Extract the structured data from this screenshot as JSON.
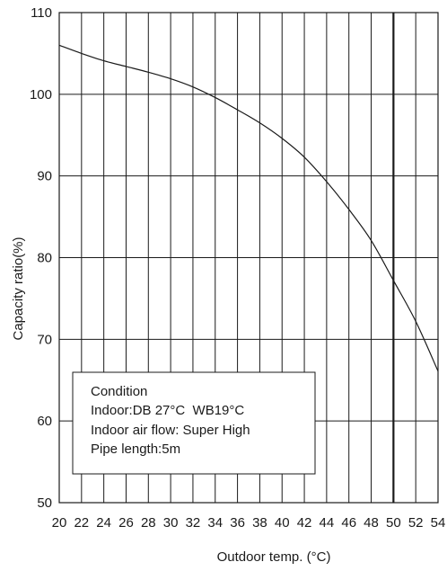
{
  "chart_data": {
    "type": "line",
    "xlabel": "Outdoor temp. (°C)",
    "ylabel": "Capacity ratio(%)",
    "xlim": [
      20,
      54
    ],
    "ylim": [
      50,
      110
    ],
    "x_ticks": [
      20,
      22,
      24,
      26,
      28,
      30,
      32,
      34,
      36,
      38,
      40,
      42,
      44,
      46,
      48,
      50,
      52,
      54
    ],
    "x_tick_labels": [
      "20",
      "22",
      "24",
      "26",
      "28",
      "30",
      "32",
      "34",
      "36",
      "38",
      "40",
      "42",
      "44",
      "46",
      "48",
      "50",
      "52",
      "54"
    ],
    "y_ticks": [
      50,
      60,
      70,
      80,
      90,
      100,
      110
    ],
    "y_tick_labels": [
      "50",
      "60",
      "70",
      "80",
      "90",
      "100",
      "110"
    ],
    "grid": true,
    "emphasized_gridline_x": 50,
    "series": [
      {
        "x": [
          20,
          22,
          24,
          26,
          28,
          30,
          32,
          34,
          36,
          38,
          40,
          42,
          44,
          46,
          48,
          50,
          52,
          54
        ],
        "y": [
          106,
          105,
          104.1,
          103.4,
          102.7,
          101.9,
          100.9,
          99.6,
          98.1,
          96.5,
          94.6,
          92.3,
          89.3,
          85.9,
          82.1,
          77.2,
          72.2,
          66.1
        ],
        "color": "#1a1a1a"
      }
    ],
    "annotation": {
      "lines": [
        "Condition",
        "Indoor:DB 27°C  WB19°C",
        "Indoor air flow: Super High",
        "Pipe length:5m"
      ]
    }
  }
}
